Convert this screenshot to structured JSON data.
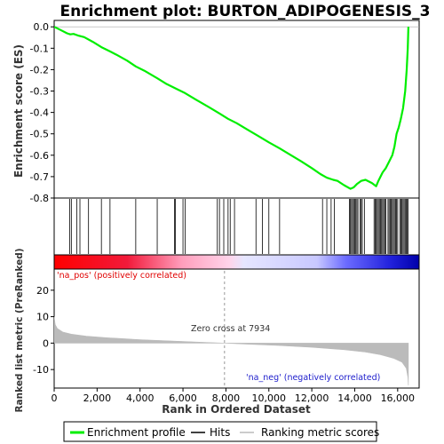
{
  "chart_data": {
    "type": "line",
    "title": "Enrichment plot: BURTON_ADIPOGENESIS_3",
    "xlabel": "Rank in Ordered Dataset",
    "ylabel_top": "Enrichment score (ES)",
    "ylabel_bottom": "Ranked list metric (PreRanked)",
    "x_max": 16500,
    "xlim": [
      0,
      17000
    ],
    "x_ticks": [
      0,
      2000,
      4000,
      6000,
      8000,
      10000,
      12000,
      14000,
      16000
    ],
    "x_tick_labels": [
      "0",
      "2,000",
      "4,000",
      "6,000",
      "8,000",
      "10,000",
      "12,000",
      "14,000",
      "16,000"
    ],
    "es_ylim": [
      -0.8,
      0.03
    ],
    "es_ticks": [
      0.0,
      -0.1,
      -0.2,
      -0.3,
      -0.4,
      -0.5,
      -0.6,
      -0.7,
      -0.8
    ],
    "es_tick_labels": [
      "0.0",
      "-0.1",
      "-0.2",
      "-0.3",
      "-0.4",
      "-0.5",
      "-0.6",
      "-0.7",
      "-0.8"
    ],
    "metric_ylim": [
      -17,
      28
    ],
    "metric_ticks": [
      20,
      10,
      0,
      -10
    ],
    "metric_tick_labels": [
      "20",
      "10",
      "0",
      "-10"
    ],
    "es_curve": [
      [
        0,
        0.0
      ],
      [
        300,
        -0.015
      ],
      [
        600,
        -0.03
      ],
      [
        750,
        -0.035
      ],
      [
        900,
        -0.033
      ],
      [
        1100,
        -0.04
      ],
      [
        1400,
        -0.048
      ],
      [
        1800,
        -0.07
      ],
      [
        2200,
        -0.095
      ],
      [
        2600,
        -0.115
      ],
      [
        2900,
        -0.13
      ],
      [
        3400,
        -0.158
      ],
      [
        3800,
        -0.185
      ],
      [
        4200,
        -0.205
      ],
      [
        4800,
        -0.24
      ],
      [
        5200,
        -0.265
      ],
      [
        5700,
        -0.29
      ],
      [
        6100,
        -0.31
      ],
      [
        6600,
        -0.34
      ],
      [
        7200,
        -0.375
      ],
      [
        7700,
        -0.405
      ],
      [
        8100,
        -0.43
      ],
      [
        8500,
        -0.45
      ],
      [
        9000,
        -0.48
      ],
      [
        9500,
        -0.51
      ],
      [
        10000,
        -0.54
      ],
      [
        10500,
        -0.568
      ],
      [
        11000,
        -0.598
      ],
      [
        11500,
        -0.628
      ],
      [
        12000,
        -0.66
      ],
      [
        12400,
        -0.688
      ],
      [
        12700,
        -0.705
      ],
      [
        13000,
        -0.715
      ],
      [
        13200,
        -0.72
      ],
      [
        13500,
        -0.74
      ],
      [
        13800,
        -0.757
      ],
      [
        13950,
        -0.75
      ],
      [
        14100,
        -0.735
      ],
      [
        14300,
        -0.72
      ],
      [
        14500,
        -0.715
      ],
      [
        14800,
        -0.73
      ],
      [
        15000,
        -0.745
      ],
      [
        15100,
        -0.72
      ],
      [
        15300,
        -0.68
      ],
      [
        15450,
        -0.66
      ],
      [
        15600,
        -0.63
      ],
      [
        15750,
        -0.6
      ],
      [
        15850,
        -0.56
      ],
      [
        15950,
        -0.5
      ],
      [
        16050,
        -0.47
      ],
      [
        16150,
        -0.43
      ],
      [
        16250,
        -0.38
      ],
      [
        16350,
        -0.3
      ],
      [
        16420,
        -0.2
      ],
      [
        16470,
        -0.1
      ],
      [
        16500,
        0.0
      ]
    ],
    "hits": [
      720,
      800,
      1050,
      1200,
      1600,
      2200,
      2600,
      3800,
      4800,
      5600,
      5650,
      6000,
      6100,
      7600,
      7700,
      7900,
      8100,
      8200,
      8400,
      9400,
      9700,
      10000,
      10500,
      12500,
      12700,
      12900,
      13050,
      13750,
      13800,
      13850,
      13900,
      13950,
      14000,
      14050,
      14100,
      14150,
      14250,
      14300,
      14350,
      14450,
      14900,
      14950,
      15000,
      15050,
      15100,
      15150,
      15200,
      15250,
      15300,
      15350,
      15400,
      15450,
      15550,
      15600,
      15650,
      15700,
      15750,
      15800,
      15850,
      15900,
      15950,
      16000,
      16100,
      16150,
      16200,
      16250,
      16300,
      16350,
      16400,
      16450,
      16480
    ],
    "metric_curve": [
      [
        0,
        10
      ],
      [
        50,
        7
      ],
      [
        150,
        5.5
      ],
      [
        400,
        4.2
      ],
      [
        800,
        3.4
      ],
      [
        1500,
        2.6
      ],
      [
        2500,
        2.0
      ],
      [
        4000,
        1.3
      ],
      [
        5500,
        0.8
      ],
      [
        7000,
        0.3
      ],
      [
        7934,
        0.0
      ],
      [
        9000,
        -0.4
      ],
      [
        10500,
        -0.9
      ],
      [
        12000,
        -1.6
      ],
      [
        13500,
        -2.5
      ],
      [
        14500,
        -3.4
      ],
      [
        15200,
        -4.4
      ],
      [
        15800,
        -5.7
      ],
      [
        16200,
        -7.2
      ],
      [
        16400,
        -9.5
      ],
      [
        16480,
        -13
      ],
      [
        16500,
        -16
      ]
    ],
    "zero_cross": 7934,
    "zero_cross_label": "Zero cross at 7934",
    "na_pos_label": "'na_pos' (positively correlated)",
    "na_neg_label": "'na_neg' (negatively correlated)",
    "legend": [
      "Enrichment profile",
      "Hits",
      "Ranking metric scores"
    ],
    "colors": {
      "es": "#00ee00",
      "pos": "#ff0000",
      "neg": "#0000cc",
      "metric": "#bbbbbb",
      "hits": "#000000"
    }
  }
}
